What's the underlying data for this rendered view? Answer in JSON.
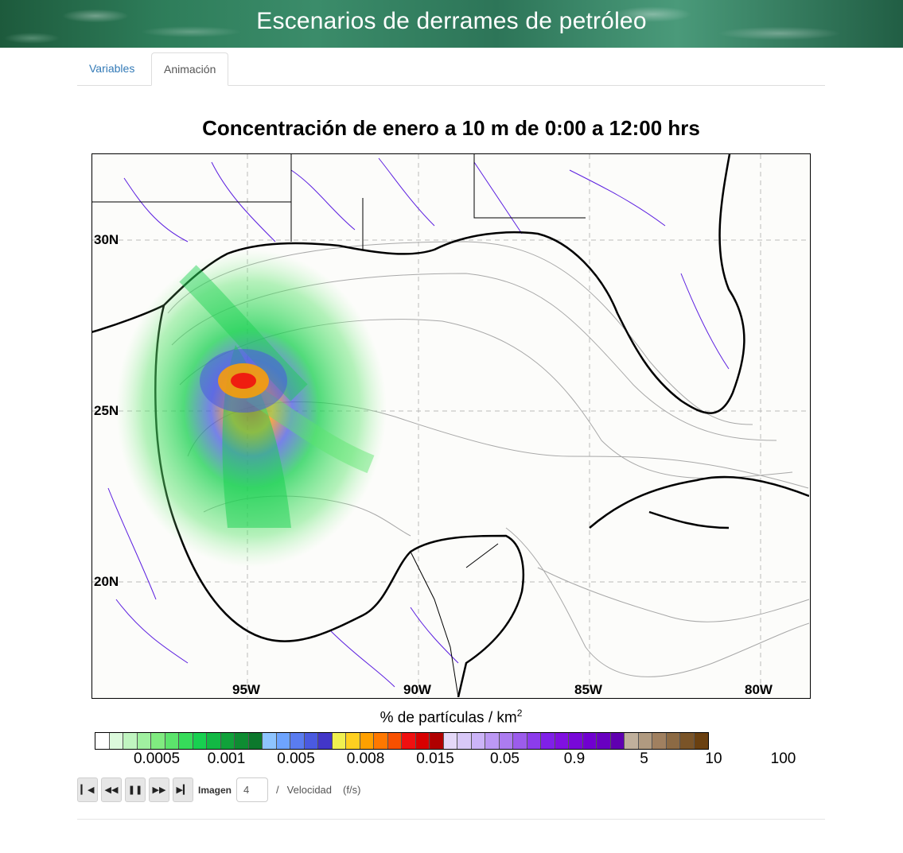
{
  "header": {
    "title": "Escenarios de derrames de petróleo"
  },
  "tabs": [
    {
      "label": "Variables",
      "active": false
    },
    {
      "label": "Animación",
      "active": true
    }
  ],
  "plot": {
    "title": "Concentración de enero a  10 m de 0:00 a 12:00 hrs",
    "lat_labels": [
      "30N",
      "25N",
      "20N"
    ],
    "lon_labels": [
      "95W",
      "90W",
      "85W",
      "80W"
    ]
  },
  "colorbar": {
    "title": "% de partículas / km",
    "title_sup": "2",
    "colors": [
      "#ffffff",
      "#dcfadc",
      "#c0f5c0",
      "#a0f0a0",
      "#80eb80",
      "#5ce46c",
      "#36dc5a",
      "#18d050",
      "#12b844",
      "#10a23a",
      "#0e8c32",
      "#0c782c",
      "#8ec4ff",
      "#6ea4ff",
      "#5a7cf0",
      "#4a5ae0",
      "#4236c8",
      "#f0f050",
      "#ffd020",
      "#ffa000",
      "#ff7800",
      "#f85000",
      "#f01010",
      "#d80000",
      "#b00000",
      "#e4d8f8",
      "#d8c8f8",
      "#ccb4f8",
      "#bc98f4",
      "#ac7cf0",
      "#9c5cec",
      "#8c3cec",
      "#8020e8",
      "#8010e0",
      "#7808d8",
      "#7000d0",
      "#6800c0",
      "#6000b0",
      "#c0b09c",
      "#b09a80",
      "#a08060",
      "#8c6a44",
      "#7a5428",
      "#6a4010"
    ],
    "ticks": [
      "0.0005",
      "0.001",
      "0.005",
      "0.008",
      "0.015",
      "0.05",
      "0.9",
      "5",
      "10",
      "100"
    ]
  },
  "controls": {
    "buttons": [
      "first-frame",
      "step-back",
      "pause",
      "step-forward",
      "last-frame"
    ],
    "frame_label": "Imagen",
    "frame_value": "4",
    "separator": "/",
    "speed_label": "Velocidad",
    "speed_unit": "(f/s)"
  }
}
